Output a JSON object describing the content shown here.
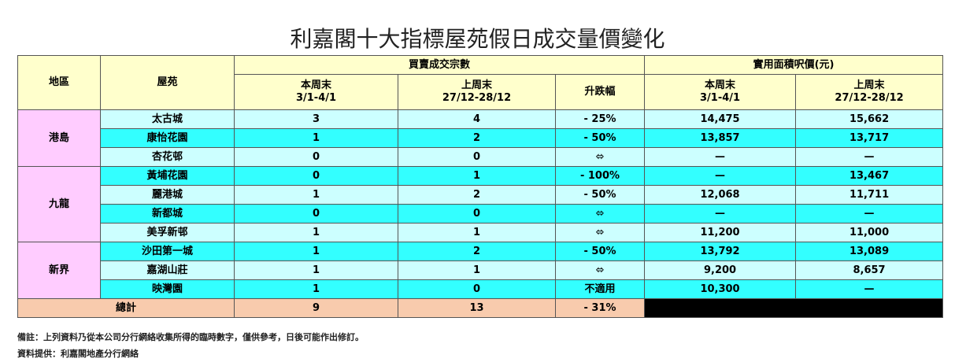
{
  "title": "利嘉閣十大指標屋苑假日成交量價變化",
  "header": {
    "region": "地區",
    "estate": "屋苑",
    "transactions": "買賣成交宗數",
    "price": "實用面積呎價(元)",
    "this_week": "本周末",
    "this_week_dates": "3/1-4/1",
    "last_week": "上周末",
    "last_week_dates": "27/12-28/12",
    "change": "升跌幅"
  },
  "regions": [
    {
      "name": "港島",
      "rows": [
        [
          "太古城",
          "3",
          "4",
          "- 25%",
          "14,475",
          "15,662"
        ],
        [
          "康怡花園",
          "1",
          "2",
          "- 50%",
          "13,857",
          "13,717"
        ],
        [
          "杏花邨",
          "0",
          "0",
          "⬄",
          "—",
          "—"
        ]
      ]
    },
    {
      "name": "九龍",
      "rows": [
        [
          "黃埔花園",
          "0",
          "1",
          "- 100%",
          "—",
          "13,467"
        ],
        [
          "麗港城",
          "1",
          "2",
          "- 50%",
          "12,068",
          "11,711"
        ],
        [
          "新都城",
          "0",
          "0",
          "⬄",
          "—",
          "—"
        ],
        [
          "美孚新邨",
          "1",
          "1",
          "⬄",
          "11,200",
          "11,000"
        ]
      ]
    },
    {
      "name": "新界",
      "rows": [
        [
          "沙田第一城",
          "1",
          "2",
          "- 50%",
          "13,792",
          "13,089"
        ],
        [
          "嘉湖山莊",
          "1",
          "1",
          "⬄",
          "9,200",
          "8,657"
        ],
        [
          "映灣園",
          "1",
          "0",
          "不適用",
          "10,300",
          "—"
        ]
      ]
    }
  ],
  "total": {
    "label": "總計",
    "this_week": "9",
    "last_week": "13",
    "change": "- 31%"
  },
  "notes": [
    "備註：上列資料乃從本公司分行網絡收集所得的臨時數字，僅供參考，日後可能作出修訂。",
    "資料提供：利嘉閣地產分行網絡"
  ]
}
